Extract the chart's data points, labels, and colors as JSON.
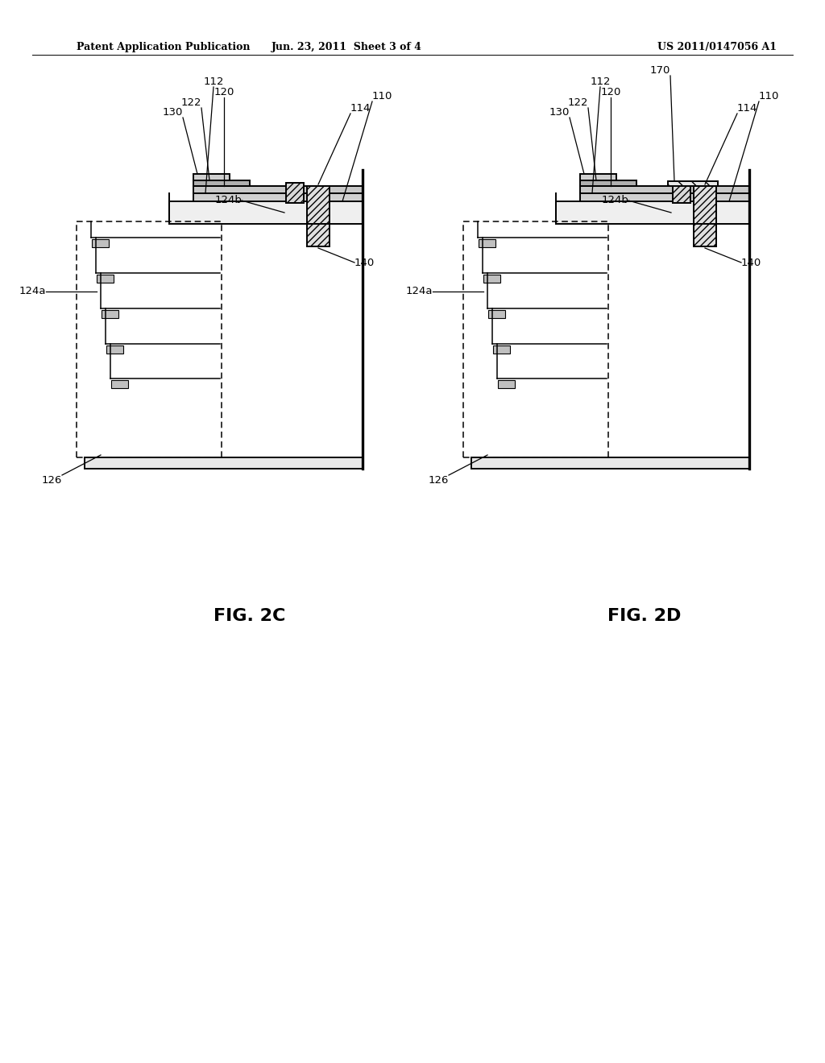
{
  "bg_color": "#ffffff",
  "header_left": "Patent Application Publication",
  "header_center": "Jun. 23, 2011  Sheet 3 of 4",
  "header_right": "US 2011/0147056 A1",
  "fig2c_label": "FIG. 2C",
  "fig2d_label": "FIG. 2D",
  "line_color": "#000000",
  "hatch_color": "#000000",
  "header_fontsize": 9,
  "label_fontsize": 9.5,
  "fig_label_fontsize": 16
}
